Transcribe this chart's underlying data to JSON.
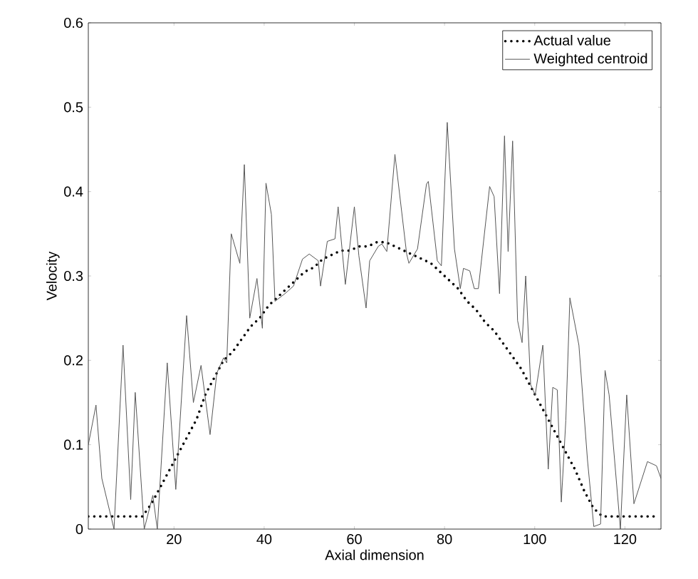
{
  "chart_data": {
    "type": "line",
    "xlabel": "Axial dimension",
    "ylabel": "Velocity",
    "xlim": [
      1,
      128
    ],
    "ylim": [
      0,
      0.6
    ],
    "xticks": [
      20,
      40,
      60,
      80,
      100,
      120
    ],
    "yticks": [
      0,
      0.1,
      0.2,
      0.3,
      0.4,
      0.5,
      0.6
    ],
    "legend": "top right",
    "grid": false,
    "series": [
      {
        "name": "Actual value",
        "color": "#000000",
        "line_style": "dotted",
        "x": [
          1,
          3,
          5,
          7,
          9,
          11,
          13,
          15,
          17,
          19,
          21,
          23,
          25,
          27,
          29,
          31,
          33,
          35,
          37,
          39,
          41,
          43,
          45,
          47,
          49,
          51,
          53,
          55,
          57,
          59,
          61,
          63,
          65,
          67,
          69,
          71,
          73,
          75,
          77,
          79,
          81,
          83,
          85,
          87,
          89,
          91,
          93,
          95,
          97,
          99,
          101,
          103,
          105,
          107,
          109,
          111,
          113,
          115,
          117,
          119,
          121,
          123,
          125,
          127
        ],
        "values": [
          0.015,
          0.015,
          0.015,
          0.015,
          0.015,
          0.015,
          0.015,
          0.03,
          0.05,
          0.07,
          0.09,
          0.11,
          0.13,
          0.16,
          0.18,
          0.2,
          0.21,
          0.225,
          0.24,
          0.25,
          0.265,
          0.275,
          0.285,
          0.295,
          0.305,
          0.31,
          0.32,
          0.325,
          0.33,
          0.33,
          0.335,
          0.335,
          0.34,
          0.34,
          0.335,
          0.33,
          0.325,
          0.32,
          0.315,
          0.305,
          0.295,
          0.285,
          0.27,
          0.26,
          0.245,
          0.235,
          0.22,
          0.205,
          0.19,
          0.17,
          0.15,
          0.13,
          0.11,
          0.09,
          0.07,
          0.045,
          0.025,
          0.015,
          0.015,
          0.015,
          0.015,
          0.015,
          0.015,
          0.015
        ]
      },
      {
        "name": "Weighted centroid",
        "color": "#555555",
        "line_style": "solid",
        "x": [
          1,
          2.7,
          4,
          6.7,
          8.7,
          10.4,
          11.4,
          13.4,
          15.3,
          16.3,
          18.5,
          20.4,
          22.8,
          24.3,
          26,
          28,
          29.5,
          31,
          31.7,
          32.7,
          34.6,
          35.6,
          36.8,
          38.4,
          39.6,
          40.4,
          41.6,
          42.4,
          44.6,
          46.5,
          48.5,
          50,
          52,
          52.5,
          54,
          55.7,
          56.4,
          58,
          60,
          61,
          62.6,
          63.4,
          65.3,
          66.1,
          67.2,
          69,
          71.6,
          72.1,
          74,
          76,
          76.4,
          78.4,
          79.3,
          80.6,
          82.2,
          83.5,
          84.2,
          85.6,
          86.6,
          87.5,
          90,
          91,
          92.2,
          93.3,
          94.1,
          95.1,
          96.2,
          97.2,
          98,
          99.1,
          100.1,
          101.8,
          103,
          104,
          105,
          105.9,
          106.9,
          107.8,
          109.8,
          111.7,
          113.1,
          114.6,
          115.6,
          116.5,
          119,
          120.4,
          122,
          125,
          127,
          128
        ],
        "values": [
          0.1,
          0.147,
          0.06,
          0,
          0.218,
          0.035,
          0.162,
          0,
          0.04,
          0,
          0.197,
          0.047,
          0.253,
          0.15,
          0.194,
          0.112,
          0.185,
          0.203,
          0.197,
          0.35,
          0.315,
          0.432,
          0.25,
          0.297,
          0.238,
          0.41,
          0.373,
          0.27,
          0.279,
          0.288,
          0.32,
          0.326,
          0.318,
          0.288,
          0.341,
          0.344,
          0.382,
          0.29,
          0.382,
          0.324,
          0.262,
          0.318,
          0.335,
          0.338,
          0.329,
          0.444,
          0.326,
          0.315,
          0.332,
          0.409,
          0.412,
          0.318,
          0.312,
          0.482,
          0.332,
          0.285,
          0.309,
          0.306,
          0.285,
          0.285,
          0.406,
          0.394,
          0.279,
          0.466,
          0.329,
          0.46,
          0.247,
          0.221,
          0.3,
          0.171,
          0.159,
          0.218,
          0.071,
          0.168,
          0.165,
          0.032,
          0.129,
          0.274,
          0.218,
          0.082,
          0.003,
          0.006,
          0.188,
          0.159,
          0,
          0.159,
          0.03,
          0.08,
          0.075,
          0.06
        ]
      }
    ]
  }
}
